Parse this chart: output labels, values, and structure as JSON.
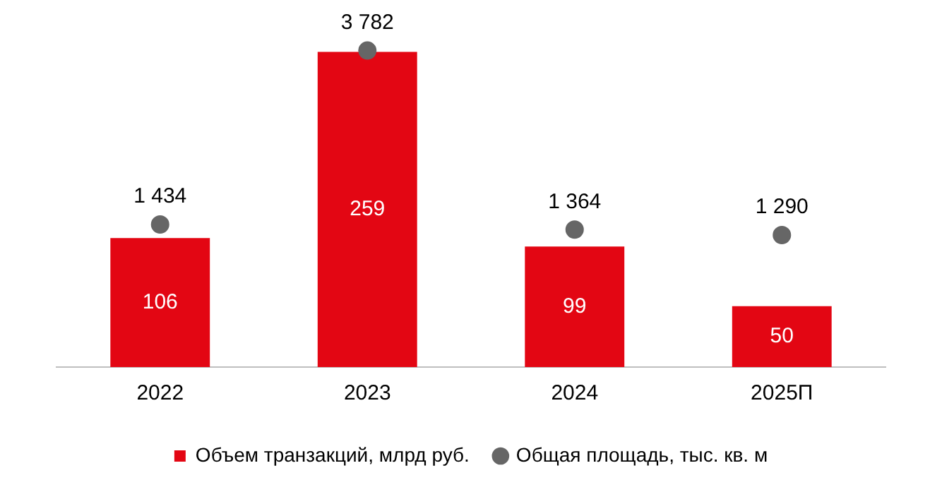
{
  "chart_data": {
    "type": "bar",
    "categories": [
      "2022",
      "2023",
      "2024",
      "2025П"
    ],
    "series": [
      {
        "name": "Объем транзакций, млрд руб.",
        "color": "#e30613",
        "values": [
          106,
          259,
          99,
          50
        ]
      },
      {
        "name": "Общая площадь, тыс. кв. м",
        "type": "scatter",
        "axis": "y2",
        "color": "#666666",
        "values": [
          1434,
          3782,
          1364,
          1290
        ]
      }
    ],
    "data_labels": true,
    "tick_labels": "x",
    "grid": false,
    "legend": "bottom",
    "marker": "circle"
  }
}
